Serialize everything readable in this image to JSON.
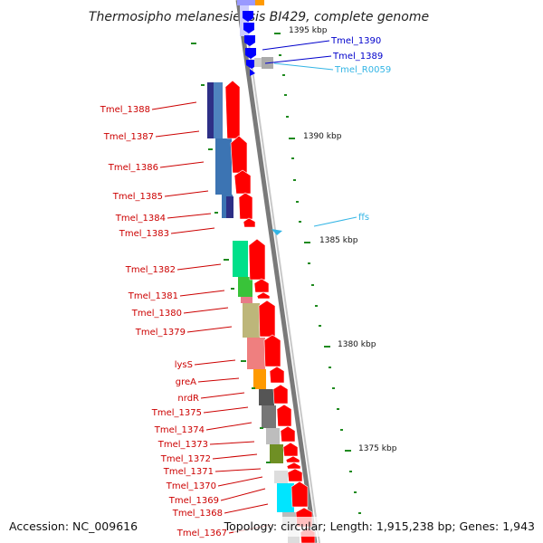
{
  "title": "Thermosipho melanesiensis BI429, complete genome",
  "footer": {
    "accession": "Accession: NC_009616",
    "topology": "Topology: circular; Length: 1,915,238 bp; Genes: 1,943"
  },
  "colors": {
    "cds_red": "#ff0000",
    "label_red": "#cc0000",
    "label_blue": "#0000cc",
    "label_cyan": "#33b5e5",
    "backbone": "#808080",
    "tick_green": "#1f8a1f"
  },
  "tick_labels": [
    "1395 kbp",
    "1390 kbp",
    "1385 kbp",
    "1380 kbp",
    "1375 kbp"
  ],
  "gene_labels": [
    {
      "text": "Tmel_1390",
      "color": "blue"
    },
    {
      "text": "Tmel_1389",
      "color": "blue"
    },
    {
      "text": "Tmel_R0059",
      "color": "cyan"
    },
    {
      "text": "ffs",
      "color": "cyan"
    },
    {
      "text": "Tmel_1388",
      "color": "red"
    },
    {
      "text": "Tmel_1387",
      "color": "red"
    },
    {
      "text": "Tmel_1386",
      "color": "red"
    },
    {
      "text": "Tmel_1385",
      "color": "red"
    },
    {
      "text": "Tmel_1384",
      "color": "red"
    },
    {
      "text": "Tmel_1383",
      "color": "red"
    },
    {
      "text": "Tmel_1382",
      "color": "red"
    },
    {
      "text": "Tmel_1381",
      "color": "red"
    },
    {
      "text": "Tmel_1380",
      "color": "red"
    },
    {
      "text": "Tmel_1379",
      "color": "red"
    },
    {
      "text": "lysS",
      "color": "red"
    },
    {
      "text": "greA",
      "color": "red"
    },
    {
      "text": "nrdR",
      "color": "red"
    },
    {
      "text": "Tmel_1375",
      "color": "red"
    },
    {
      "text": "Tmel_1374",
      "color": "red"
    },
    {
      "text": "Tmel_1373",
      "color": "red"
    },
    {
      "text": "Tmel_1372",
      "color": "red"
    },
    {
      "text": "Tmel_1371",
      "color": "red"
    },
    {
      "text": "Tmel_1370",
      "color": "red"
    },
    {
      "text": "Tmel_1369",
      "color": "red"
    },
    {
      "text": "Tmel_1368",
      "color": "red"
    },
    {
      "text": "Tmel_1367",
      "color": "red"
    }
  ],
  "cog_colors": [
    "#2e2f86",
    "#4f83be",
    "#3c74b3",
    "#00e08a",
    "#39c339",
    "#e87b88",
    "#bdb67a",
    "#ef7f7f",
    "#ff9a00",
    "#555555",
    "#777777",
    "#bdbdbd",
    "#6f8f24",
    "#00e5ff"
  ]
}
